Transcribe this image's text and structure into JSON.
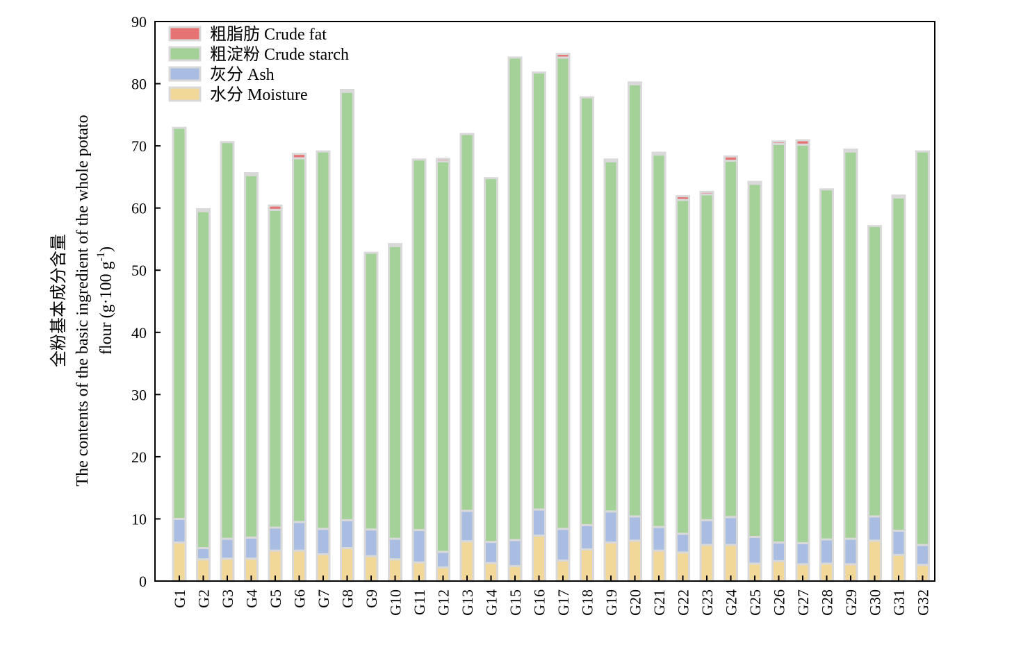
{
  "chart_data": {
    "type": "bar",
    "stacked": true,
    "categories": [
      "G1",
      "G2",
      "G3",
      "G4",
      "G5",
      "G6",
      "G7",
      "G8",
      "G9",
      "G10",
      "G11",
      "G12",
      "G13",
      "G14",
      "G15",
      "G16",
      "G17",
      "G18",
      "G19",
      "G20",
      "G21",
      "G22",
      "G23",
      "G24",
      "G25",
      "G26",
      "G27",
      "G28",
      "G29",
      "G30",
      "G31",
      "G32"
    ],
    "series": [
      {
        "name": "水分 Moisture",
        "color": "#f2d898",
        "values": [
          6.2,
          3.5,
          3.6,
          3.6,
          4.9,
          4.9,
          4.3,
          5.3,
          4.0,
          3.5,
          3.0,
          2.2,
          6.4,
          2.9,
          2.4,
          7.3,
          3.3,
          5.1,
          6.2,
          6.5,
          4.9,
          4.6,
          5.8,
          5.8,
          2.8,
          3.2,
          2.7,
          2.8,
          2.7,
          6.5,
          4.2,
          2.6
        ]
      },
      {
        "name": "灰分 Ash",
        "color": "#a9bde3",
        "values": [
          3.8,
          1.8,
          3.2,
          3.4,
          3.7,
          4.6,
          4.1,
          4.5,
          4.3,
          3.3,
          5.2,
          2.5,
          4.9,
          3.4,
          4.2,
          4.2,
          5.1,
          3.9,
          5.0,
          3.9,
          3.8,
          3.0,
          4.0,
          4.5,
          4.3,
          3.0,
          3.4,
          3.9,
          4.1,
          3.9,
          3.9,
          3.2
        ]
      },
      {
        "name": "粗淀粉 Crude starch",
        "color": "#a3d197",
        "values": [
          62.9,
          54.2,
          63.8,
          58.3,
          51.1,
          58.5,
          60.7,
          68.9,
          44.5,
          47.1,
          59.6,
          62.8,
          60.6,
          58.5,
          77.6,
          70.3,
          75.8,
          68.8,
          56.3,
          69.5,
          59.9,
          53.7,
          52.4,
          57.3,
          56.8,
          64.1,
          64.1,
          56.3,
          62.3,
          46.7,
          53.6,
          63.3
        ]
      },
      {
        "name": "粗脂肪 Crude fat",
        "color": "#e57373",
        "values": [
          0.0,
          0.3,
          0.0,
          0.3,
          0.7,
          0.7,
          0.0,
          0.3,
          0.0,
          0.3,
          0.0,
          0.4,
          0.0,
          0.0,
          0.0,
          0.0,
          0.6,
          0.0,
          0.3,
          0.3,
          0.3,
          0.6,
          0.4,
          0.7,
          0.3,
          0.4,
          0.7,
          0.0,
          0.3,
          0.0,
          0.3,
          0.0
        ]
      }
    ],
    "legend_order": [
      "粗脂肪 Crude fat",
      "粗淀粉 Crude starch",
      "灰分 Ash",
      "水分 Moisture"
    ],
    "legend_position": "top-left",
    "ylim": [
      0,
      90
    ],
    "yticks": [
      0,
      10,
      20,
      30,
      40,
      50,
      60,
      70,
      80,
      90
    ],
    "ylabel_lines": [
      "全粉基本成分含量",
      "The contents of the basic ingredient of the whole potato",
      "flour (g·100 g",
      "-1",
      ")"
    ],
    "xlabel": "",
    "grid": false
  }
}
